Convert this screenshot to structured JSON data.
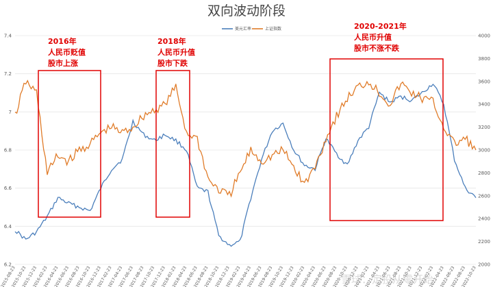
{
  "chart_data": {
    "type": "line",
    "title": "双向波动阶段",
    "y_left": {
      "ticks": [
        "6.2",
        "6.4",
        "6.6",
        "6.8",
        "7",
        "7.2",
        "7.4"
      ],
      "ylim": [
        6.2,
        7.4
      ]
    },
    "y_right": {
      "ticks": [
        "2000",
        "2200",
        "2400",
        "2600",
        "2800",
        "3000",
        "3200",
        "3400",
        "3600",
        "3800",
        "4000"
      ],
      "ylim": [
        2000,
        4000
      ]
    },
    "x_ticks": [
      "2015-08-23",
      "2015-10-23",
      "2015-12-23",
      "2016-02-23",
      "2016-04-23",
      "2016-06-23",
      "2016-08-23",
      "2016-10-23",
      "2016-12-23",
      "2017-02-23",
      "2017-04-23",
      "2017-06-23",
      "2017-08-23",
      "2017-10-23",
      "2017-12-23",
      "2018-02-23",
      "2018-04-23",
      "2018-06-23",
      "2018-08-23",
      "2018-10-23",
      "2018-12-23",
      "2019-02-23",
      "2019-04-23",
      "2019-06-23",
      "2019-08-23",
      "2019-10-23",
      "2019-12-23",
      "2020-02-23",
      "2020-04-23",
      "2020-06-23",
      "2020-08-23",
      "2020-10-23",
      "2020-12-23",
      "2021-02-23",
      "2021-04-23",
      "2021-06-23",
      "2021-08-23",
      "2021-10-23",
      "2021-12-23",
      "2022-02-23",
      "2022-04-23",
      "2022-06-23",
      "2022-08-23",
      "2022-10-23"
    ],
    "series": [
      {
        "name": "美元汇率",
        "axis": "left",
        "color": "#4a7ebb",
        "x": [
          0,
          1,
          2,
          3,
          4,
          5,
          6,
          7,
          8,
          9,
          10,
          11,
          12,
          13,
          14,
          15,
          16,
          17,
          18,
          19,
          20,
          21,
          22,
          23,
          24,
          25,
          26,
          27,
          28,
          29,
          30,
          31,
          32,
          33,
          34,
          35,
          36,
          37,
          38,
          39,
          40,
          41,
          42,
          43
        ],
        "values": [
          6.38,
          6.33,
          6.37,
          6.45,
          6.55,
          6.52,
          6.5,
          6.48,
          6.6,
          6.7,
          6.75,
          6.95,
          6.88,
          6.85,
          6.88,
          6.85,
          6.8,
          6.6,
          6.58,
          6.35,
          6.3,
          6.32,
          6.55,
          6.75,
          6.9,
          6.94,
          6.8,
          6.72,
          6.7,
          6.86,
          6.78,
          6.72,
          6.85,
          6.92,
          7.1,
          7.05,
          7.08,
          7.06,
          7.1,
          7.15,
          7.04,
          6.75,
          6.6,
          6.55
        ]
      },
      {
        "name": "上证指数",
        "axis": "right",
        "color": "#e07b28",
        "x": [
          0,
          1,
          2,
          3,
          4,
          5,
          6,
          7,
          8,
          9,
          10,
          11,
          12,
          13,
          14,
          15,
          16,
          17,
          18,
          19,
          20,
          21,
          22,
          23,
          24,
          25,
          26,
          27,
          28,
          29,
          30,
          31,
          32,
          33,
          34,
          35,
          36,
          37,
          38,
          39,
          40,
          41,
          42,
          43
        ],
        "values": [
          3300,
          3600,
          3500,
          2800,
          2950,
          2900,
          3000,
          3050,
          3150,
          3200,
          3150,
          3200,
          3300,
          3350,
          3400,
          3550,
          3150,
          3100,
          2750,
          2650,
          2600,
          2800,
          3000,
          2900,
          2950,
          3000,
          2850,
          2700,
          2850,
          3100,
          3300,
          3450,
          3550,
          3600,
          3500,
          3400,
          3580,
          3500,
          3450,
          3420,
          3200,
          3050,
          3100,
          3000
        ]
      }
    ],
    "grid": true,
    "legend_position": "top-center",
    "annotations": [
      {
        "lines": [
          "2016年",
          "人民币贬值",
          "股市上涨"
        ]
      },
      {
        "lines": [
          "2018年",
          "人民币升值",
          "股市下跌"
        ]
      },
      {
        "lines": [
          "2020-2021年",
          "人民币升值",
          "股市不涨不跌"
        ]
      }
    ],
    "watermark": "雪球：定投从零开始"
  }
}
